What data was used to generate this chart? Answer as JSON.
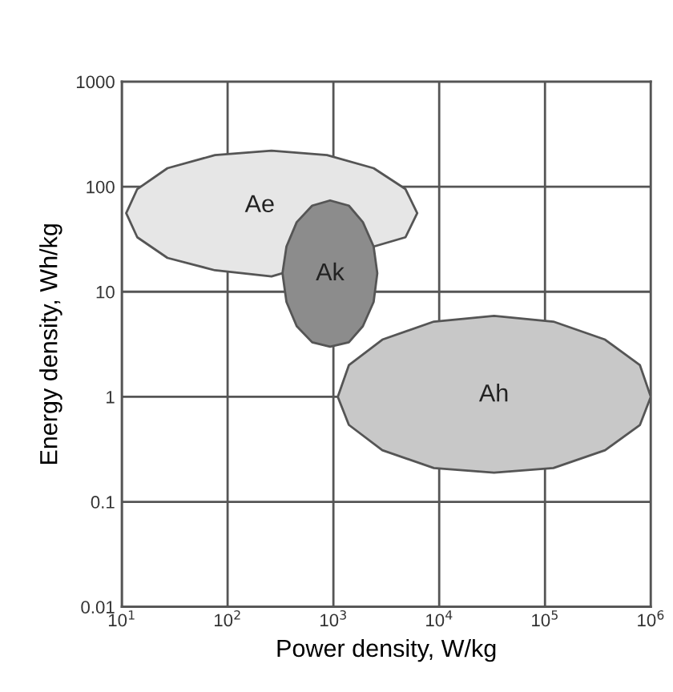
{
  "chart_data": {
    "type": "area",
    "xlabel": "Power density, W/kg",
    "ylabel": "Energy density, Wh/kg",
    "log": "xy",
    "grid": true,
    "xlim": [
      10,
      1000000
    ],
    "xticks": [
      {
        "value": 10,
        "label": "10$^{1}$"
      },
      {
        "value": 100,
        "label": "10$^{2}$"
      },
      {
        "value": 1000,
        "label": "10$^{3}$"
      },
      {
        "value": 10000,
        "label": "10$^{4}$"
      },
      {
        "value": 100000,
        "label": "10$^{5}$"
      },
      {
        "value": 1000000,
        "label": "10$^{6}$"
      }
    ],
    "ylim": [
      0.01,
      1000
    ],
    "yticks": [
      0.01,
      0.1,
      1,
      10,
      100,
      1000
    ],
    "series": [
      {
        "name": "Ae",
        "color": "#e6e6e6",
        "x": [
          6200,
          4800,
          2400,
          870,
          260,
          76,
          27,
          14,
          11,
          14,
          27,
          76,
          260,
          870,
          2400,
          4800
        ],
        "values": [
          56,
          95,
          150,
          200,
          220,
          200,
          150,
          95,
          56,
          33,
          21,
          16,
          14,
          null,
          null,
          33
        ]
      },
      {
        "name": "Ak",
        "color": "#8c8c8c",
        "x": [
          2600,
          2400,
          1900,
          1400,
          930,
          630,
          450,
          360,
          330,
          360,
          450,
          630,
          930,
          1400,
          1900,
          2400
        ],
        "values": [
          15,
          27,
          46,
          66,
          74,
          66,
          46,
          27,
          15,
          8.0,
          4.7,
          3.3,
          3.0,
          3.3,
          4.7,
          8.0
        ]
      },
      {
        "name": "Ah",
        "color": "#c8c8c8",
        "x": [
          1000000,
          790000,
          370000,
          120000,
          33000,
          8900,
          2900,
          1400,
          1100,
          1400,
          2900,
          8900,
          33000,
          120000,
          370000,
          790000
        ],
        "values": [
          1.0,
          2.0,
          3.5,
          5.2,
          5.9,
          5.2,
          3.5,
          2.0,
          1.0,
          0.54,
          0.31,
          0.21,
          0.19,
          0.21,
          0.31,
          0.54
        ]
      }
    ]
  }
}
